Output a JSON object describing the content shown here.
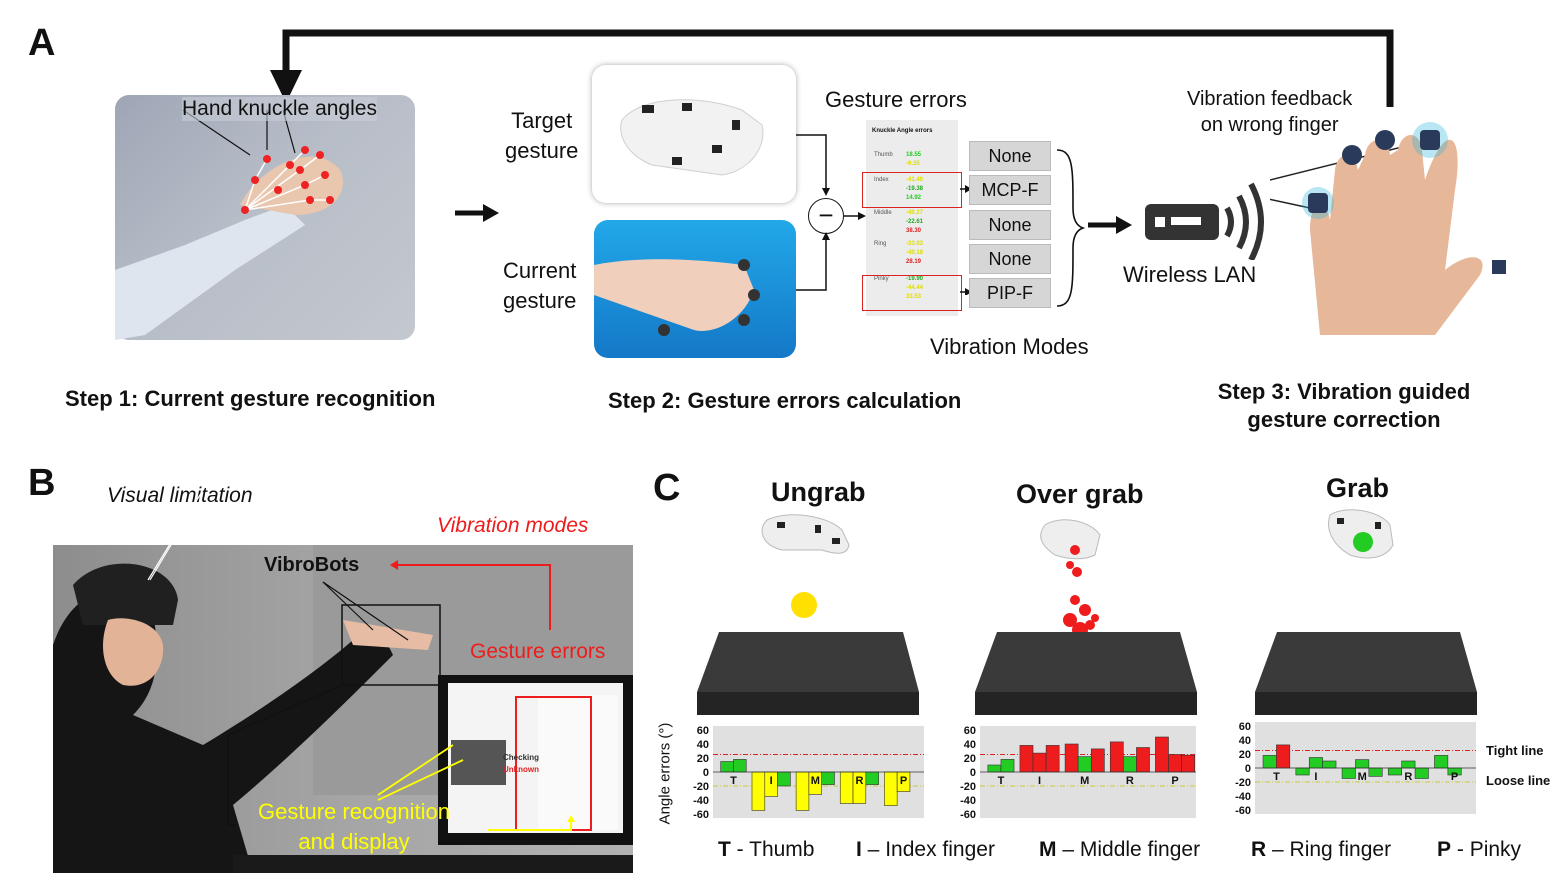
{
  "panel_a": {
    "letter": "A",
    "knuckle_label": "Hand knuckle angles",
    "target_label": [
      "Target",
      "gesture"
    ],
    "current_label": [
      "Current",
      "gesture"
    ],
    "errors_label": "Gesture errors",
    "table_header": "Knuckle Angle errors",
    "table_rows": [
      {
        "finger": "Thumb",
        "values": [
          "18.55",
          "-9.35"
        ],
        "colors": [
          "#22cc22",
          "#dddd00"
        ]
      },
      {
        "finger": "Index",
        "values": [
          "-41.40",
          "-19.38",
          "14.92"
        ],
        "colors": [
          "#dddd00",
          "#22aa22",
          "#22cc22"
        ]
      },
      {
        "finger": "Middle",
        "values": [
          "-40.27",
          "-22.61",
          "38.30"
        ],
        "colors": [
          "#dddd00",
          "#22aa22",
          "#dd2222"
        ]
      },
      {
        "finger": "Ring",
        "values": [
          "-33.03",
          "-40.18",
          "28.19"
        ],
        "colors": [
          "#dddd00",
          "#dddd00",
          "#dd2222"
        ]
      },
      {
        "finger": "Pinky",
        "values": [
          "-19.90",
          "-44.44",
          "33.53"
        ],
        "colors": [
          "#22aa22",
          "#dddd00",
          "#dddd00"
        ]
      }
    ],
    "modes": [
      "None",
      "MCP-F",
      "None",
      "None",
      "PIP-F"
    ],
    "modes_label": "Vibration Modes",
    "wireless_label": "Wireless LAN",
    "feedback_label": [
      "Vibration feedback",
      "on wrong finger"
    ],
    "step1": "Step 1: Current gesture recognition",
    "step2": "Step 2: Gesture errors calculation",
    "step3": [
      "Step 3: Vibration guided",
      "gesture correction"
    ],
    "minus_symbol": "−"
  },
  "panel_b": {
    "letter": "B",
    "visual_limitation": "Visual limitation",
    "vibration_modes": "Vibration modes",
    "vibrobots": "VibroBots",
    "gesture_errors": "Gesture errors",
    "recognition": [
      "Gesture recognition",
      "and display"
    ],
    "screen_checking": "Checking",
    "screen_unknown": "Unknown"
  },
  "panel_c": {
    "letter": "C",
    "ylabel": "Angle errors (°)",
    "tight_line": "Tight line",
    "loose_line": "Loose line",
    "legend": [
      {
        "key": "T",
        "sep": " - ",
        "text": "Thumb"
      },
      {
        "key": "I",
        "sep": " – ",
        "text": "Index finger"
      },
      {
        "key": "M",
        "sep": " – ",
        "text": "Middle finger"
      },
      {
        "key": "R",
        "sep": " – ",
        "text": "Ring finger"
      },
      {
        "key": "P",
        "sep": " - ",
        "text": "Pinky"
      }
    ]
  },
  "colors": {
    "green": "#22cc22",
    "yellow": "#ffff00",
    "red": "#ee1c1c",
    "threshold_red": "#dd2222",
    "threshold_yellow": "#cccc33",
    "chart_bg": "#e0e0e0"
  },
  "chart_data": [
    {
      "type": "bar",
      "title": "Ungrab",
      "categories": [
        "T",
        "T",
        "I",
        "I",
        "I",
        "M",
        "M",
        "M",
        "R",
        "R",
        "R",
        "P",
        "P",
        "P"
      ],
      "group_labels": [
        "T",
        "I",
        "M",
        "R",
        "P"
      ],
      "values": [
        15,
        18,
        -55,
        -35,
        -20,
        -55,
        -32,
        -18,
        -45,
        -45,
        -18,
        -48,
        -28,
        null
      ],
      "bar_colors": [
        "green",
        "green",
        "yellow",
        "yellow",
        "green",
        "yellow",
        "yellow",
        "green",
        "yellow",
        "yellow",
        "green",
        "yellow",
        "yellow",
        "green"
      ],
      "yticks": [
        60,
        40,
        20,
        0,
        -20,
        -40,
        -60
      ],
      "ylim": [
        -60,
        60
      ],
      "tight_line": 25,
      "loose_line": -20
    },
    {
      "type": "bar",
      "title": "Over grab",
      "categories": [
        "T",
        "T",
        "I",
        "I",
        "I",
        "M",
        "M",
        "M",
        "R",
        "R",
        "R",
        "P",
        "P",
        "P"
      ],
      "group_labels": [
        "T",
        "I",
        "M",
        "R",
        "P"
      ],
      "values": [
        10,
        18,
        38,
        27,
        38,
        40,
        22,
        33,
        43,
        22,
        35,
        50,
        25,
        24
      ],
      "bar_colors": [
        "green",
        "green",
        "red",
        "red",
        "red",
        "red",
        "green",
        "red",
        "red",
        "green",
        "red",
        "red",
        "red",
        "red"
      ],
      "yticks": [
        60,
        40,
        20,
        0,
        -20,
        -40,
        -60
      ],
      "ylim": [
        -60,
        60
      ],
      "tight_line": 25,
      "loose_line": -20
    },
    {
      "type": "bar",
      "title": "Grab",
      "categories": [
        "T",
        "T",
        "I",
        "I",
        "I",
        "M",
        "M",
        "M",
        "R",
        "R",
        "R",
        "P",
        "P",
        "P"
      ],
      "group_labels": [
        "T",
        "I",
        "M",
        "R",
        "P"
      ],
      "values": [
        18,
        33,
        -10,
        15,
        10,
        -15,
        12,
        -12,
        -10,
        10,
        -15,
        18,
        -10,
        null
      ],
      "bar_colors": [
        "green",
        "red",
        "green",
        "green",
        "green",
        "green",
        "green",
        "green",
        "green",
        "green",
        "green",
        "green",
        "green",
        "green"
      ],
      "yticks": [
        60,
        40,
        20,
        0,
        -20,
        -40,
        -60
      ],
      "ylim": [
        -60,
        60
      ],
      "tight_line": 25,
      "loose_line": -20
    }
  ]
}
